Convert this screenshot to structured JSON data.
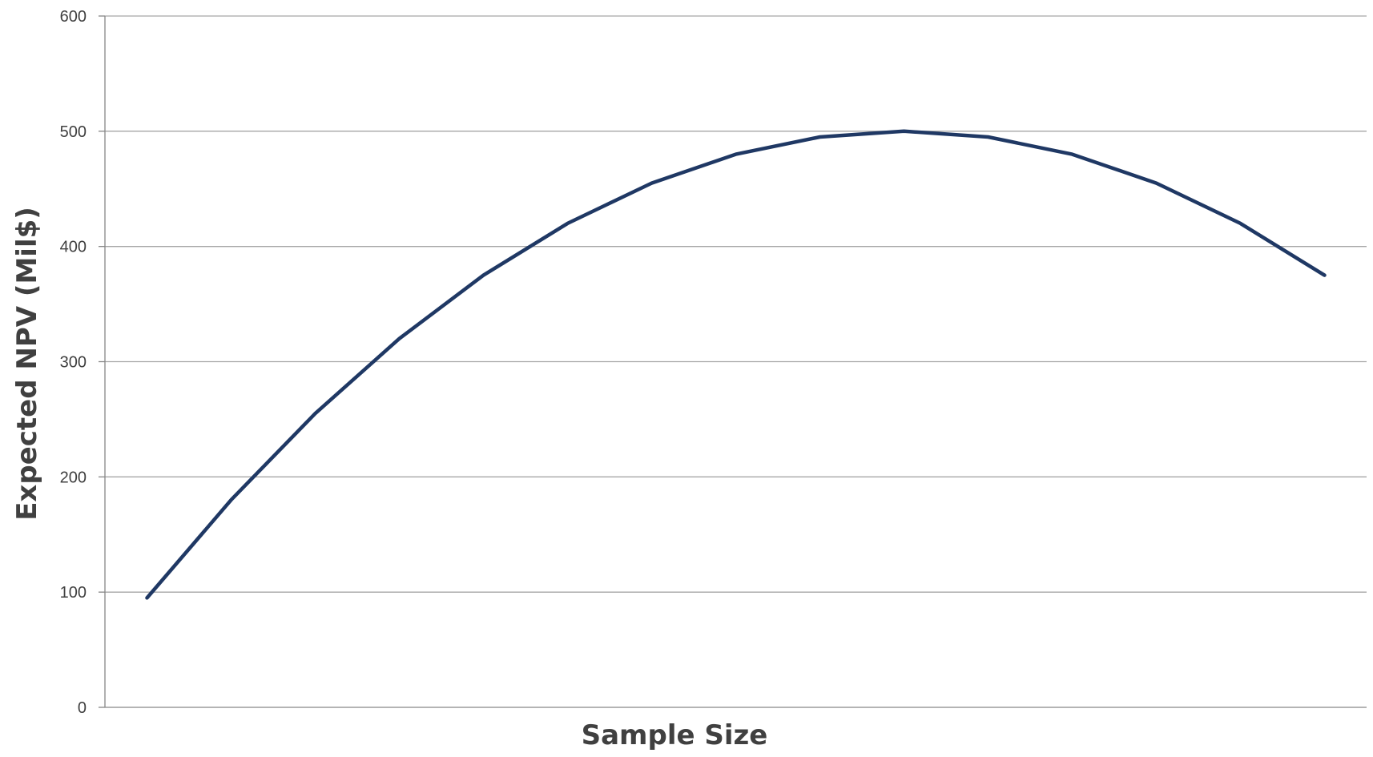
{
  "chart_data": {
    "type": "line",
    "title": "",
    "xlabel": "Sample Size",
    "ylabel": "Expected NPV (Mil$)",
    "ylim": [
      0,
      600
    ],
    "yticks": [
      "0",
      "100",
      "200",
      "300",
      "400",
      "500",
      "600"
    ],
    "grid": true,
    "legend": "none",
    "series": [
      {
        "values": [
          95,
          180,
          255,
          320,
          375,
          420,
          455,
          480,
          495,
          500,
          495,
          480,
          455,
          420,
          375
        ]
      }
    ],
    "colors": {
      "series": "#1f3864",
      "grid": "#a6a6a6",
      "text": "#404040"
    }
  }
}
